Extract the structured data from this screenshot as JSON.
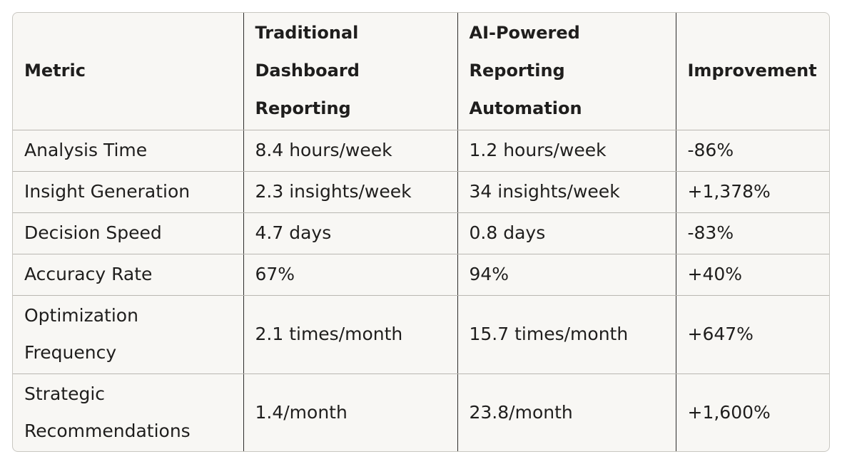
{
  "table": {
    "headers": [
      "Metric",
      "Traditional Dashboard Reporting",
      "AI-Powered Reporting Automation",
      "Improvement"
    ],
    "rows": [
      [
        "Analysis Time",
        "8.4 hours/week",
        "1.2 hours/week",
        "-86%"
      ],
      [
        "Insight Generation",
        "2.3 insights/week",
        "34 insights/week",
        "+1,378%"
      ],
      [
        "Decision Speed",
        "4.7 days",
        "0.8 days",
        "-83%"
      ],
      [
        "Accuracy Rate",
        "67%",
        "94%",
        "+40%"
      ],
      [
        "Optimization Frequency",
        "2.1 times/month",
        "15.7 times/month",
        "+647%"
      ],
      [
        "Strategic Recommendations",
        "1.4/month",
        "23.8/month",
        "+1,600%"
      ]
    ]
  }
}
